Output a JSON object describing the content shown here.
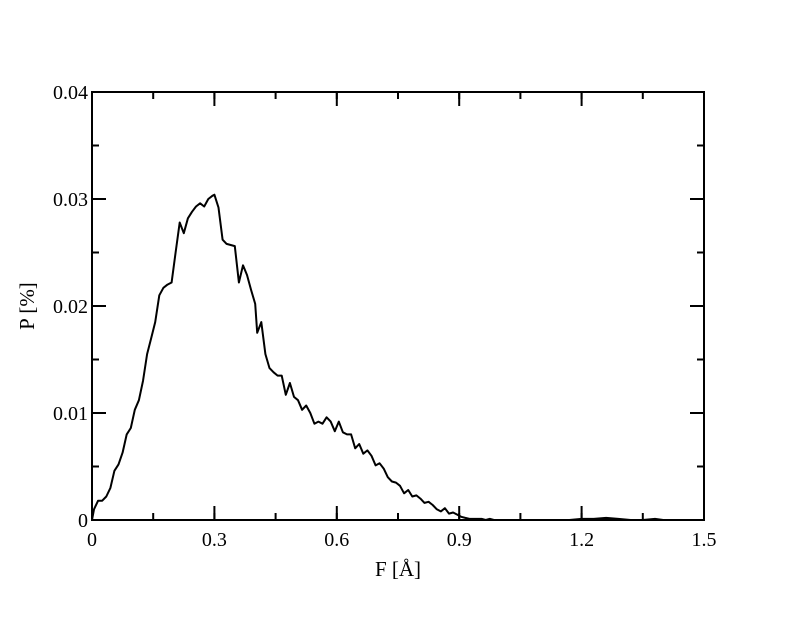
{
  "chart_data": {
    "type": "line",
    "title": "",
    "xlabel": "F [Å]",
    "ylabel": "P [%]",
    "xlim": [
      0,
      1.5
    ],
    "ylim": [
      0,
      0.04
    ],
    "grid": false,
    "x_ticks": [
      {
        "value": 0,
        "label": "0"
      },
      {
        "value": 0.3,
        "label": "0.3"
      },
      {
        "value": 0.6,
        "label": "0.6"
      },
      {
        "value": 0.9,
        "label": "0.9"
      },
      {
        "value": 1.2,
        "label": "1.2"
      },
      {
        "value": 1.5,
        "label": "1.5"
      }
    ],
    "y_ticks": [
      {
        "value": 0,
        "label": "0"
      },
      {
        "value": 0.01,
        "label": "0.01"
      },
      {
        "value": 0.02,
        "label": "0.02"
      },
      {
        "value": 0.03,
        "label": "0.03"
      },
      {
        "value": 0.04,
        "label": "0.04"
      }
    ],
    "x_minor_step": 0.15,
    "y_minor_step": 0.005,
    "series": [
      {
        "color": "#000000",
        "points": [
          [
            0.0,
            0.0
          ],
          [
            0.005,
            0.001
          ],
          [
            0.015,
            0.0018
          ],
          [
            0.025,
            0.0018
          ],
          [
            0.035,
            0.0022
          ],
          [
            0.045,
            0.003
          ],
          [
            0.055,
            0.0046
          ],
          [
            0.065,
            0.0052
          ],
          [
            0.075,
            0.0063
          ],
          [
            0.085,
            0.008
          ],
          [
            0.095,
            0.0086
          ],
          [
            0.105,
            0.0103
          ],
          [
            0.115,
            0.0112
          ],
          [
            0.125,
            0.013
          ],
          [
            0.135,
            0.0155
          ],
          [
            0.145,
            0.017
          ],
          [
            0.155,
            0.0185
          ],
          [
            0.165,
            0.021
          ],
          [
            0.175,
            0.0217
          ],
          [
            0.185,
            0.022
          ],
          [
            0.195,
            0.0222
          ],
          [
            0.205,
            0.025
          ],
          [
            0.215,
            0.0278
          ],
          [
            0.225,
            0.0268
          ],
          [
            0.235,
            0.0282
          ],
          [
            0.245,
            0.0288
          ],
          [
            0.255,
            0.0293
          ],
          [
            0.265,
            0.0296
          ],
          [
            0.275,
            0.0293
          ],
          [
            0.285,
            0.03
          ],
          [
            0.295,
            0.0303
          ],
          [
            0.3,
            0.0304
          ],
          [
            0.31,
            0.0292
          ],
          [
            0.32,
            0.0262
          ],
          [
            0.33,
            0.0258
          ],
          [
            0.34,
            0.0257
          ],
          [
            0.35,
            0.0256
          ],
          [
            0.36,
            0.0222
          ],
          [
            0.37,
            0.0238
          ],
          [
            0.38,
            0.0229
          ],
          [
            0.39,
            0.0215
          ],
          [
            0.4,
            0.0202
          ],
          [
            0.405,
            0.0175
          ],
          [
            0.415,
            0.0185
          ],
          [
            0.425,
            0.0155
          ],
          [
            0.435,
            0.0142
          ],
          [
            0.445,
            0.0138
          ],
          [
            0.455,
            0.0135
          ],
          [
            0.465,
            0.0135
          ],
          [
            0.475,
            0.0117
          ],
          [
            0.485,
            0.0128
          ],
          [
            0.495,
            0.0115
          ],
          [
            0.505,
            0.0112
          ],
          [
            0.515,
            0.0103
          ],
          [
            0.525,
            0.0107
          ],
          [
            0.535,
            0.01
          ],
          [
            0.545,
            0.009
          ],
          [
            0.555,
            0.0092
          ],
          [
            0.565,
            0.009
          ],
          [
            0.575,
            0.0096
          ],
          [
            0.585,
            0.0092
          ],
          [
            0.595,
            0.0083
          ],
          [
            0.605,
            0.0092
          ],
          [
            0.615,
            0.0082
          ],
          [
            0.625,
            0.008
          ],
          [
            0.635,
            0.008
          ],
          [
            0.645,
            0.0067
          ],
          [
            0.655,
            0.0071
          ],
          [
            0.665,
            0.0062
          ],
          [
            0.675,
            0.0065
          ],
          [
            0.685,
            0.006
          ],
          [
            0.695,
            0.0051
          ],
          [
            0.705,
            0.0053
          ],
          [
            0.715,
            0.0048
          ],
          [
            0.725,
            0.004
          ],
          [
            0.735,
            0.0036
          ],
          [
            0.745,
            0.0035
          ],
          [
            0.755,
            0.0032
          ],
          [
            0.765,
            0.0025
          ],
          [
            0.775,
            0.0028
          ],
          [
            0.785,
            0.0022
          ],
          [
            0.795,
            0.0023
          ],
          [
            0.805,
            0.002
          ],
          [
            0.815,
            0.0016
          ],
          [
            0.825,
            0.0017
          ],
          [
            0.835,
            0.0014
          ],
          [
            0.845,
            0.001
          ],
          [
            0.855,
            0.0008
          ],
          [
            0.865,
            0.0011
          ],
          [
            0.875,
            0.0006
          ],
          [
            0.885,
            0.0007
          ],
          [
            0.895,
            0.0005
          ],
          [
            0.905,
            0.0003
          ],
          [
            0.915,
            0.0002
          ],
          [
            0.925,
            0.0001
          ],
          [
            0.935,
            0.0001
          ],
          [
            0.945,
            0.0001
          ],
          [
            0.955,
            0.0001
          ],
          [
            0.965,
            0.0
          ],
          [
            0.975,
            0.0001
          ],
          [
            0.985,
            0.0
          ],
          [
            1.0,
            0.0
          ],
          [
            1.02,
            0.0
          ],
          [
            1.05,
            0.0
          ],
          [
            1.08,
            0.0
          ],
          [
            1.11,
            0.0
          ],
          [
            1.14,
            0.0
          ],
          [
            1.17,
            0.0
          ],
          [
            1.2,
            0.0001
          ],
          [
            1.23,
            0.0001
          ],
          [
            1.26,
            0.0002
          ],
          [
            1.29,
            0.0001
          ],
          [
            1.32,
            0.0
          ],
          [
            1.35,
            0.0
          ],
          [
            1.38,
            0.0001
          ],
          [
            1.4,
            0.0
          ]
        ]
      }
    ]
  }
}
